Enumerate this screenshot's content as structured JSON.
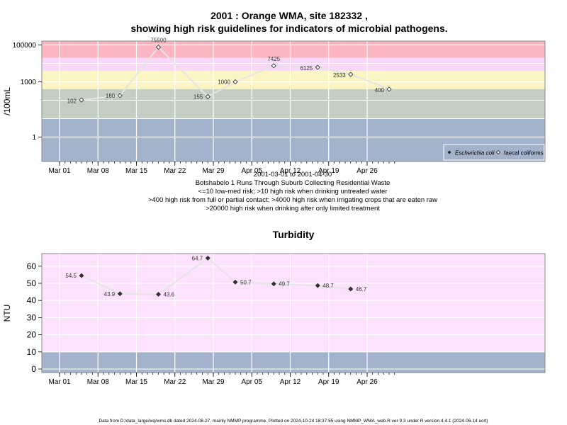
{
  "page": {
    "title_line1": "2001 : Orange WMA, site 182332 ,",
    "title_line2": "showing high risk guidelines for indicators of microbial pathogens.",
    "caption_lines": [
      "2001-03-01 to 2001-04-30",
      "Botshabelo 1 Runs Through Suburb Collecting Residential Waste",
      "<=10 low-med risk; >10 high risk when drinking untreated water",
      ">400 high risk from full or partial contact; >4000 high risk when irrigating crops that are eaten raw",
      ">20000 high risk when drinking after only limited treatment"
    ],
    "footer": "Data from D:/data_large/wq/wms.db dated 2024-08-27, mainly NMMP programme. Plotted on 2024-10-24 18:37:55 using NMMP_WMA_web.R ver 9.3 under R version 4.4.1 (2024-06-14 ucrt)"
  },
  "x_axis": {
    "ticks": [
      "Mar 01",
      "Mar 08",
      "Mar 15",
      "Mar 22",
      "Mar 29",
      "Apr 05",
      "Apr 12",
      "Apr 19",
      "Apr 26"
    ]
  },
  "chart_data": [
    {
      "type": "line",
      "scale": "log10",
      "ylabel": "/100mL",
      "y_ticks": [
        "1",
        "1000",
        "100000"
      ],
      "legend_position": "bottom-right",
      "grid": true,
      "colors": {
        "band_red": "#fdb6c1",
        "band_pink": "#f8d7f8",
        "band_yellow": "#fbf5c3",
        "band_green": "#c2cfc2",
        "band_blue": "#a3b3cc",
        "line": "#e4e4e4"
      },
      "series": [
        {
          "name": "Escherichia coli",
          "marker": "filled-diamond",
          "points": []
        },
        {
          "name": "faecal coliforms",
          "marker": "open-diamond",
          "points": [
            {
              "date": "2001-03-05",
              "value": 102,
              "label": "102"
            },
            {
              "date": "2001-03-12",
              "value": 180,
              "label": "180"
            },
            {
              "date": "2001-03-19",
              "value": 75500,
              "label": "75500"
            },
            {
              "date": "2001-03-28",
              "value": 155,
              "label": "155"
            },
            {
              "date": "2001-04-02",
              "value": 1000,
              "label": "1000"
            },
            {
              "date": "2001-04-09",
              "value": 7425,
              "label": "7425"
            },
            {
              "date": "2001-04-17",
              "value": 6125,
              "label": "6125"
            },
            {
              "date": "2001-04-23",
              "value": 2533,
              "label": "2533"
            },
            {
              "date": "2001-04-30",
              "value": 400,
              "label": "400"
            }
          ]
        }
      ]
    },
    {
      "type": "line",
      "title": "Turbidity",
      "ylabel": "NTU",
      "ylim": [
        0,
        65
      ],
      "y_ticks": [
        0,
        10,
        20,
        30,
        40,
        50,
        60
      ],
      "grid": true,
      "colors": {
        "band_pink": "#fde2fd",
        "band_blue": "#a3b3cc",
        "line": "#e4e4e4",
        "marker": "#333333"
      },
      "series": [
        {
          "name": "",
          "marker": "filled-diamond",
          "points": [
            {
              "date": "2001-03-05",
              "value": 54.5,
              "label": "54.5"
            },
            {
              "date": "2001-03-12",
              "value": 43.9,
              "label": "43.9"
            },
            {
              "date": "2001-03-19",
              "value": 43.6,
              "label": "43.6"
            },
            {
              "date": "2001-03-28",
              "value": 64.7,
              "label": "64.7"
            },
            {
              "date": "2001-04-02",
              "value": 50.7,
              "label": "50.7"
            },
            {
              "date": "2001-04-09",
              "value": 49.7,
              "label": "49.7"
            },
            {
              "date": "2001-04-17",
              "value": 48.7,
              "label": "48.7"
            },
            {
              "date": "2001-04-23",
              "value": 46.7,
              "label": "46.7"
            }
          ]
        }
      ]
    }
  ]
}
